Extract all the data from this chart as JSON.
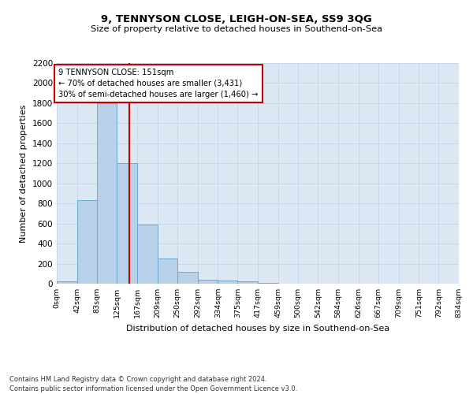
{
  "title": "9, TENNYSON CLOSE, LEIGH-ON-SEA, SS9 3QG",
  "subtitle": "Size of property relative to detached houses in Southend-on-Sea",
  "xlabel": "Distribution of detached houses by size in Southend-on-Sea",
  "ylabel": "Number of detached properties",
  "footnote1": "Contains HM Land Registry data © Crown copyright and database right 2024.",
  "footnote2": "Contains public sector information licensed under the Open Government Licence v3.0.",
  "bar_edges": [
    0,
    42,
    83,
    125,
    167,
    209,
    250,
    292,
    334,
    375,
    417,
    459,
    500,
    542,
    584,
    626,
    667,
    709,
    751,
    792,
    834
  ],
  "bar_heights": [
    20,
    830,
    1800,
    1200,
    590,
    250,
    120,
    40,
    30,
    20,
    10,
    0,
    0,
    0,
    0,
    0,
    0,
    0,
    0,
    0
  ],
  "bar_color": "#b8d0e8",
  "bar_edgecolor": "#6aaad4",
  "grid_color": "#c8d8ea",
  "background_color": "#dce8f4",
  "vline_x": 151,
  "vline_color": "#cc0000",
  "annotation_text": "9 TENNYSON CLOSE: 151sqm\n← 70% of detached houses are smaller (3,431)\n30% of semi-detached houses are larger (1,460) →",
  "annotation_box_color": "#cc0000",
  "ylim": [
    0,
    2200
  ],
  "yticks": [
    0,
    200,
    400,
    600,
    800,
    1000,
    1200,
    1400,
    1600,
    1800,
    2000,
    2200
  ],
  "fig_width": 6.0,
  "fig_height": 5.0,
  "dpi": 100
}
